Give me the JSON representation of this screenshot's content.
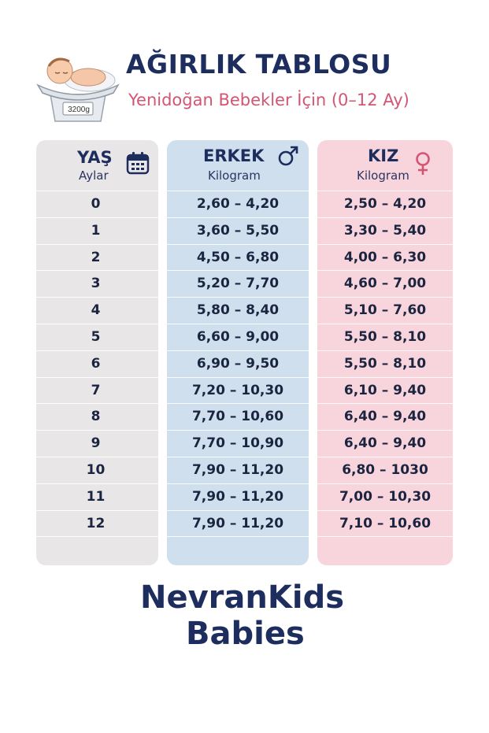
{
  "header": {
    "title": "AĞIRLIK TABLOSU",
    "subtitle": "Yenidoğan Bebekler İçin (0–12 Ay)",
    "scale_label": "3200g"
  },
  "table": {
    "columns": [
      {
        "title": "YAŞ",
        "subtitle": "Aylar",
        "icon": "calendar-icon"
      },
      {
        "title": "ERKEK",
        "subtitle": "Kilogram",
        "icon": "male-symbol-icon"
      },
      {
        "title": "KIZ",
        "subtitle": "Kilogram",
        "icon": "female-symbol-icon"
      }
    ],
    "rows": [
      {
        "age": "0",
        "boy": "2,60 – 4,20",
        "girl": "2,50 – 4,20"
      },
      {
        "age": "1",
        "boy": "3,60 – 5,50",
        "girl": "3,30 – 5,40"
      },
      {
        "age": "2",
        "boy": "4,50 – 6,80",
        "girl": "4,00 – 6,30"
      },
      {
        "age": "3",
        "boy": "5,20 – 7,70",
        "girl": "4,60 – 7,00"
      },
      {
        "age": "4",
        "boy": "5,80 – 8,40",
        "girl": "5,10 – 7,60"
      },
      {
        "age": "5",
        "boy": "6,60 – 9,00",
        "girl": "5,50 – 8,10"
      },
      {
        "age": "6",
        "boy": "6,90 – 9,50",
        "girl": "5,50 – 8,10"
      },
      {
        "age": "7",
        "boy": "7,20 – 10,30",
        "girl": "6,10 – 9,40"
      },
      {
        "age": "8",
        "boy": "7,70 – 10,60",
        "girl": "6,40 – 9,40"
      },
      {
        "age": "9",
        "boy": "7,70 – 10,90",
        "girl": "6,40 – 9,40"
      },
      {
        "age": "10",
        "boy": "7,90 – 11,20",
        "girl": "6,80 – 1030"
      },
      {
        "age": "11",
        "boy": "7,90 – 11,20",
        "girl": "7,00 – 10,30"
      },
      {
        "age": "12",
        "boy": "7,90 – 11,20",
        "girl": "7,10 – 10,60"
      }
    ]
  },
  "brand": {
    "line1": "NevranKids",
    "line2": "Babies"
  },
  "colors": {
    "navy": "#1c2d5e",
    "pink_text": "#d25674",
    "age_bg": "#e9e6e8",
    "boy_bg": "#cfdfee",
    "girl_bg": "#f8d5dc"
  }
}
